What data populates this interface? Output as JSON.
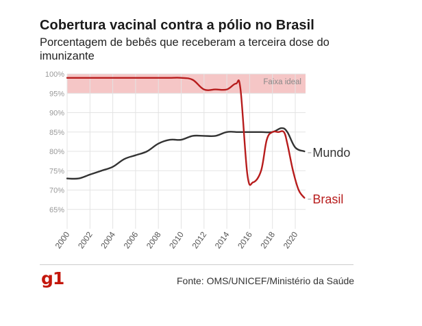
{
  "header": {
    "title": "Cobertura vacinal contra a pólio no Brasil",
    "subtitle": "Porcentagem de bebês que receberam a terceira dose do imunizante"
  },
  "footer": {
    "logo": "g1",
    "source": "Fonte: OMS/UNICEF/Ministério da Saúde"
  },
  "colors": {
    "mundo": "#333333",
    "brasil": "#b71c1c",
    "band": "#f5c6c6",
    "grid": "#e3e3e3",
    "axis_text": "#999999",
    "logo": "#c4170c"
  },
  "chart_data": {
    "type": "line",
    "title": "Cobertura vacinal contra a pólio no Brasil",
    "subtitle": "Porcentagem de bebês que receberam a terceira dose do imunizante",
    "xlim": [
      2000,
      2020.9
    ],
    "ylim": [
      60,
      100
    ],
    "x_ticks": [
      2000,
      2002,
      2004,
      2006,
      2008,
      2010,
      2012,
      2014,
      2016,
      2018,
      2020
    ],
    "y_ticks": [
      65,
      70,
      75,
      80,
      85,
      90,
      95,
      100
    ],
    "y_tick_labels": [
      "65%",
      "70%",
      "75%",
      "80%",
      "85%",
      "90%",
      "95%",
      "100%"
    ],
    "grid": true,
    "band": {
      "label": "Faixa ideal",
      "from": 95,
      "to": 100
    },
    "series": [
      {
        "name": "Mundo",
        "color": "#333333",
        "x": [
          2000,
          2001,
          2002,
          2003,
          2004,
          2005,
          2006,
          2007,
          2008,
          2009,
          2010,
          2011,
          2012,
          2013,
          2014,
          2015,
          2016,
          2017,
          2018,
          2018.8,
          2019.3,
          2020,
          2020.8
        ],
        "y": [
          73,
          73,
          74,
          75,
          76,
          78,
          79,
          80,
          82,
          83,
          83,
          84,
          84,
          84,
          85,
          85,
          85,
          85,
          85,
          86,
          85,
          81,
          80
        ]
      },
      {
        "name": "Brasil",
        "color": "#b71c1c",
        "x": [
          2000,
          2001,
          2002,
          2003,
          2004,
          2005,
          2006,
          2007,
          2008,
          2009,
          2010,
          2011,
          2012,
          2013,
          2014,
          2014.8,
          2015.2,
          2015.8,
          2016.3,
          2017,
          2017.5,
          2018,
          2018.5,
          2019,
          2019.3,
          2019.8,
          2020.3,
          2020.8
        ],
        "y": [
          99,
          99,
          99,
          99,
          99,
          99,
          99,
          99,
          99,
          99,
          99,
          98.5,
          96,
          96,
          96,
          97.5,
          96,
          74,
          72,
          75,
          83,
          85,
          85,
          85,
          82,
          75,
          70,
          68
        ]
      }
    ]
  }
}
